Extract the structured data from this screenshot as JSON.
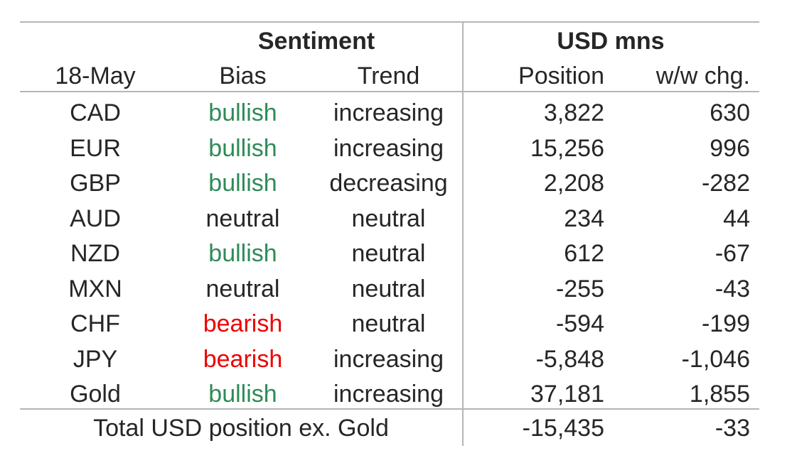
{
  "header": {
    "group_sentiment": "Sentiment",
    "group_usd": "USD mns",
    "col_date": "18-May",
    "col_bias": "Bias",
    "col_trend": "Trend",
    "col_position": "Position",
    "col_change": "w/w chg."
  },
  "colors": {
    "bullish": "#2e8b57",
    "bearish": "#ee0000",
    "neutral": "#262626",
    "rule": "#b5b5b5"
  },
  "rows": [
    {
      "currency": "CAD",
      "bias": "bullish",
      "trend": "increasing",
      "position": "3,822",
      "change": "630"
    },
    {
      "currency": "EUR",
      "bias": "bullish",
      "trend": "increasing",
      "position": "15,256",
      "change": "996"
    },
    {
      "currency": "GBP",
      "bias": "bullish",
      "trend": "decreasing",
      "position": "2,208",
      "change": "-282"
    },
    {
      "currency": "AUD",
      "bias": "neutral",
      "trend": "neutral",
      "position": "234",
      "change": "44"
    },
    {
      "currency": "NZD",
      "bias": "bullish",
      "trend": "neutral",
      "position": "612",
      "change": "-67"
    },
    {
      "currency": "MXN",
      "bias": "neutral",
      "trend": "neutral",
      "position": "-255",
      "change": "-43"
    },
    {
      "currency": "CHF",
      "bias": "bearish",
      "trend": "neutral",
      "position": "-594",
      "change": "-199"
    },
    {
      "currency": "JPY",
      "bias": "bearish",
      "trend": "increasing",
      "position": "-5,848",
      "change": "-1,046"
    },
    {
      "currency": "Gold",
      "bias": "bullish",
      "trend": "increasing",
      "position": "37,181",
      "change": "1,855"
    }
  ],
  "total": {
    "label": "Total USD position ex. Gold",
    "position": "-15,435",
    "change": "-33"
  }
}
